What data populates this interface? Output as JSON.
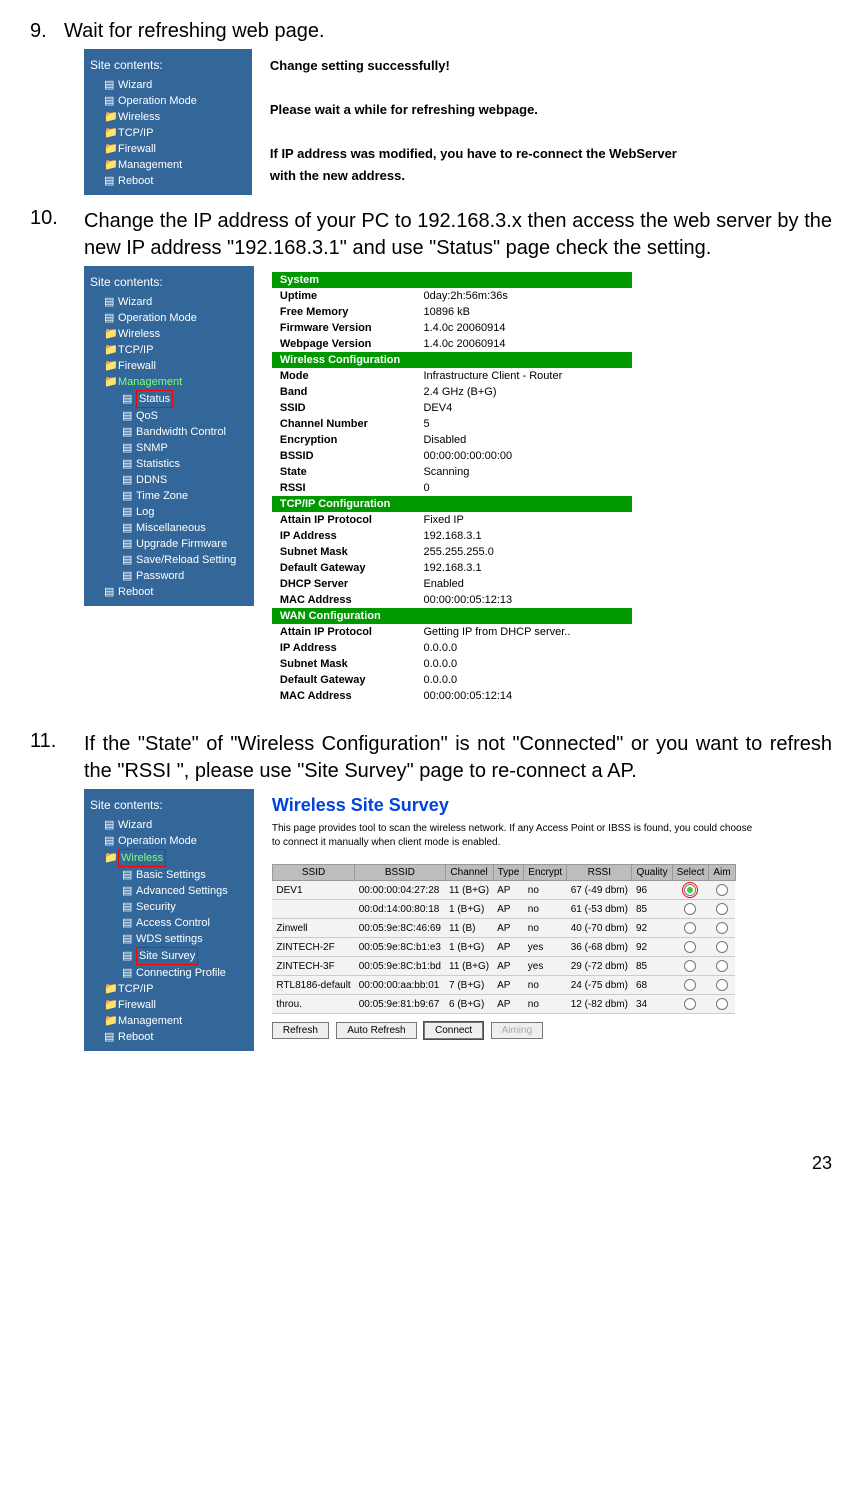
{
  "steps": {
    "s9": {
      "num": "9.",
      "text": "Wait for refreshing web page."
    },
    "s10": {
      "num": "10.",
      "text": "Change the IP address of your PC to 192.168.3.x then access the web server by the new IP address \"192.168.3.1\" and use \"Status\" page check the setting."
    },
    "s11": {
      "num": "11.",
      "text": "If the \"State\" of \"Wireless Configuration\" is not \"Connected\" or you want to refresh the \"RSSI \", please use \"Site Survey\" page to re-connect a AP."
    }
  },
  "sidebar": {
    "title": "Site contents:",
    "items1": [
      "Wizard",
      "Operation Mode",
      "Wireless",
      "TCP/IP",
      "Firewall",
      "Management",
      "Reboot"
    ],
    "items2": {
      "top": [
        "Wizard",
        "Operation Mode",
        "Wireless",
        "TCP/IP",
        "Firewall"
      ],
      "mg": "Management",
      "mg_sub": [
        "Status",
        "QoS",
        "Bandwidth Control",
        "SNMP",
        "Statistics",
        "DDNS",
        "Time Zone",
        "Log",
        "Miscellaneous",
        "Upgrade Firmware",
        "Save/Reload Setting",
        "Password"
      ],
      "reboot": "Reboot"
    },
    "items3": {
      "top": [
        "Wizard",
        "Operation Mode"
      ],
      "wl": "Wireless",
      "wl_sub": [
        "Basic Settings",
        "Advanced Settings",
        "Security",
        "Access Control",
        "WDS settings",
        "Site Survey",
        "Connecting Profile"
      ],
      "rest": [
        "TCP/IP",
        "Firewall",
        "Management",
        "Reboot"
      ]
    }
  },
  "msg": {
    "l1": "Change setting successfully!",
    "l2": "Please wait a while for refreshing webpage.",
    "l3": "If IP address was modified, you have to re-connect the WebServer",
    "l4": "with the new address."
  },
  "status": {
    "sys": {
      "hdr": "System",
      "rows": [
        [
          "Uptime",
          "0day:2h:56m:36s"
        ],
        [
          "Free Memory",
          "10896 kB"
        ],
        [
          "Firmware Version",
          "1.4.0c 20060914"
        ],
        [
          "Webpage Version",
          "1.4.0c 20060914"
        ]
      ]
    },
    "wl": {
      "hdr": "Wireless Configuration",
      "rows": [
        [
          "Mode",
          "Infrastructure Client - Router"
        ],
        [
          "Band",
          "2.4 GHz (B+G)"
        ],
        [
          "SSID",
          "DEV4"
        ],
        [
          "Channel Number",
          "5"
        ],
        [
          "Encryption",
          "Disabled"
        ],
        [
          "BSSID",
          "00:00:00:00:00:00"
        ],
        [
          "State",
          "Scanning"
        ],
        [
          "RSSI",
          "0"
        ]
      ]
    },
    "ip": {
      "hdr": "TCP/IP Configuration",
      "rows": [
        [
          "Attain IP Protocol",
          "Fixed IP"
        ],
        [
          "IP Address",
          "192.168.3.1"
        ],
        [
          "Subnet Mask",
          "255.255.255.0"
        ],
        [
          "Default Gateway",
          "192.168.3.1"
        ],
        [
          "DHCP Server",
          "Enabled"
        ],
        [
          "MAC Address",
          "00:00:00:05:12:13"
        ]
      ]
    },
    "wan": {
      "hdr": "WAN Configuration",
      "rows": [
        [
          "Attain IP Protocol",
          "Getting IP from DHCP server.."
        ],
        [
          "IP Address",
          "0.0.0.0"
        ],
        [
          "Subnet Mask",
          "0.0.0.0"
        ],
        [
          "Default Gateway",
          "0.0.0.0"
        ],
        [
          "MAC Address",
          "00:00:00:05:12:14"
        ]
      ]
    }
  },
  "survey": {
    "title": "Wireless Site Survey",
    "desc": "This page provides tool to scan the wireless network. If any Access Point or IBSS is found, you could choose to connect it manually when client mode is enabled.",
    "cols": [
      "SSID",
      "BSSID",
      "Channel",
      "Type",
      "Encrypt",
      "RSSI",
      "Quality",
      "Select",
      "Aim"
    ],
    "rows": [
      [
        "DEV1",
        "00:00:00:04:27:28",
        "11 (B+G)",
        "AP",
        "no",
        "67 (-49 dbm)",
        "96"
      ],
      [
        "",
        "00:0d:14:00:80:18",
        "1 (B+G)",
        "AP",
        "no",
        "61 (-53 dbm)",
        "85"
      ],
      [
        "Zinwell",
        "00:05:9e:8C:46:69",
        "11 (B)",
        "AP",
        "no",
        "40 (-70 dbm)",
        "92"
      ],
      [
        "ZINTECH-2F",
        "00:05:9e:8C:b1:e3",
        "1 (B+G)",
        "AP",
        "yes",
        "36 (-68 dbm)",
        "92"
      ],
      [
        "ZINTECH-3F",
        "00:05:9e:8C:b1:bd",
        "11 (B+G)",
        "AP",
        "yes",
        "29 (-72 dbm)",
        "85"
      ],
      [
        "RTL8186-default",
        "00:00:00:aa:bb:01",
        "7 (B+G)",
        "AP",
        "no",
        "24 (-75 dbm)",
        "68"
      ],
      [
        "throu.",
        "00:05:9e:81:b9:67",
        "6 (B+G)",
        "AP",
        "no",
        "12 (-82 dbm)",
        "34"
      ]
    ],
    "btns": {
      "refresh": "Refresh",
      "auto": "Auto Refresh",
      "connect": "Connect",
      "aiming": "Aiming"
    }
  },
  "pagenum": "23"
}
